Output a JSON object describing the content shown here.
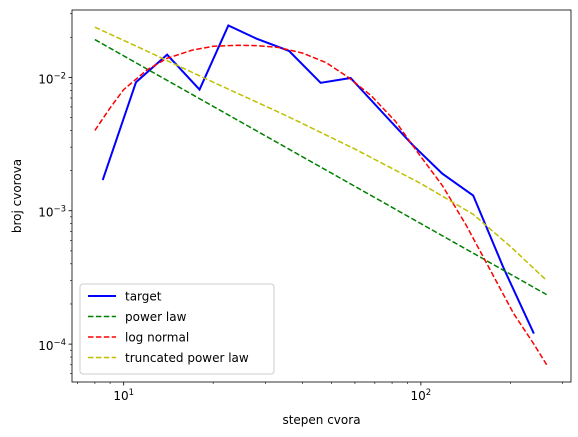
{
  "chart_data": {
    "type": "line",
    "title": "",
    "xlabel": "stepen cvora",
    "ylabel": "broj cvorova",
    "xscale": "log",
    "yscale": "log",
    "xlim": [
      6.7,
      320
    ],
    "ylim": [
      5.2e-05,
      0.032
    ],
    "grid": false,
    "legend_position": "bottom-left",
    "x_tick_labels": [
      {
        "value": 10,
        "base": "10",
        "exp": "1"
      },
      {
        "value": 100,
        "base": "10",
        "exp": "2"
      }
    ],
    "y_tick_labels": [
      {
        "value": 0.0001,
        "base": "10",
        "exp": "−4"
      },
      {
        "value": 0.001,
        "base": "10",
        "exp": "−3"
      },
      {
        "value": 0.01,
        "base": "10",
        "exp": "−2"
      }
    ],
    "series": [
      {
        "name": "target",
        "color": "#0000ff",
        "style": "solid",
        "x": [
          8.5,
          11,
          14,
          18,
          22.5,
          28,
          36,
          46,
          58,
          74,
          94,
          118,
          150,
          190,
          240
        ],
        "y": [
          0.0017,
          0.0092,
          0.0148,
          0.0081,
          0.0245,
          0.0195,
          0.0158,
          0.0091,
          0.0099,
          0.0055,
          0.0031,
          0.0019,
          0.0013,
          0.00037,
          0.00012
        ]
      },
      {
        "name": "power law",
        "color": "#008000",
        "style": "dashed",
        "x": [
          8,
          265
        ],
        "y": [
          0.0192,
          0.000235
        ]
      },
      {
        "name": "log normal",
        "color": "#ff0000",
        "style": "dashed",
        "x": [
          8,
          9,
          10,
          12,
          14,
          17,
          20,
          24,
          28,
          33,
          40,
          48,
          57,
          68,
          82,
          98,
          118,
          142,
          170,
          205,
          240,
          265
        ],
        "y": [
          0.004,
          0.0059,
          0.0081,
          0.0114,
          0.0139,
          0.016,
          0.0171,
          0.0174,
          0.0173,
          0.0168,
          0.0152,
          0.0129,
          0.01,
          0.0073,
          0.0047,
          0.0027,
          0.00155,
          0.00078,
          0.00037,
          0.00017,
          0.0001,
          7e-05
        ]
      },
      {
        "name": "truncated power law",
        "color": "#bfbf00",
        "style": "dashed",
        "x": [
          8,
          12,
          20,
          35,
          60,
          100,
          150,
          200,
          265
        ],
        "y": [
          0.0238,
          0.0157,
          0.0092,
          0.0052,
          0.0029,
          0.0016,
          0.00094,
          0.00054,
          0.0003
        ]
      }
    ]
  }
}
